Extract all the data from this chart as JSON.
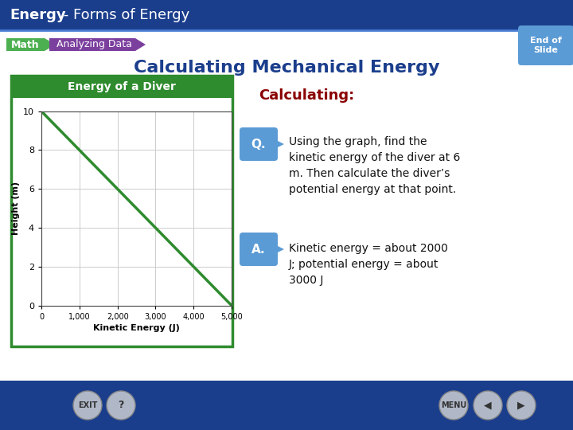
{
  "title_bold": "Energy",
  "title_rest": " - Forms of Energy",
  "main_heading": "Calculating Mechanical Energy",
  "sub_heading": "Calculating:",
  "math_label": "Math",
  "analyzing_label": "Analyzing Data",
  "graph_title": "Energy of a Diver",
  "xlabel": "Kinetic Energy (J)",
  "ylabel": "Height (m)",
  "x_data": [
    0,
    5000
  ],
  "y_data": [
    10,
    0
  ],
  "x_ticks": [
    0,
    1000,
    2000,
    3000,
    4000,
    5000
  ],
  "x_tick_labels": [
    "0",
    "1,000",
    "2,000",
    "3,000",
    "4,000",
    "5,000"
  ],
  "y_ticks": [
    0,
    2,
    4,
    6,
    8,
    10
  ],
  "xlim": [
    0,
    5000
  ],
  "ylim": [
    0,
    10
  ],
  "line_color": "#2e8b2e",
  "q_text": "Using the graph, find the\nkinetic energy of the diver at 6\nm. Then calculate the diver’s\npotential energy at that point.",
  "a_text": "Kinetic energy = about 2000\nJ; potential energy = about\n3000 J",
  "q_badge_color": "#5b9bd5",
  "a_badge_color": "#5b9bd5",
  "top_bar_color": "#1b3e8c",
  "top_bar_line_color": "#4a7fd4",
  "bg_color": "#c8daf0",
  "white": "#ffffff",
  "graph_border_color": "#2e8b2e",
  "graph_header_color": "#2e8b2e",
  "main_heading_color": "#1b3e8c",
  "sub_heading_color": "#8b0000",
  "math_bg": "#4caf50",
  "analyzing_bg": "#7b3f9e",
  "bottom_bar_color": "#1b3e8c",
  "end_slide_color": "#5b9bd5",
  "body_text_color": "#111111",
  "btn_color": "#b0b8c8",
  "btn_text_color": "#333333"
}
